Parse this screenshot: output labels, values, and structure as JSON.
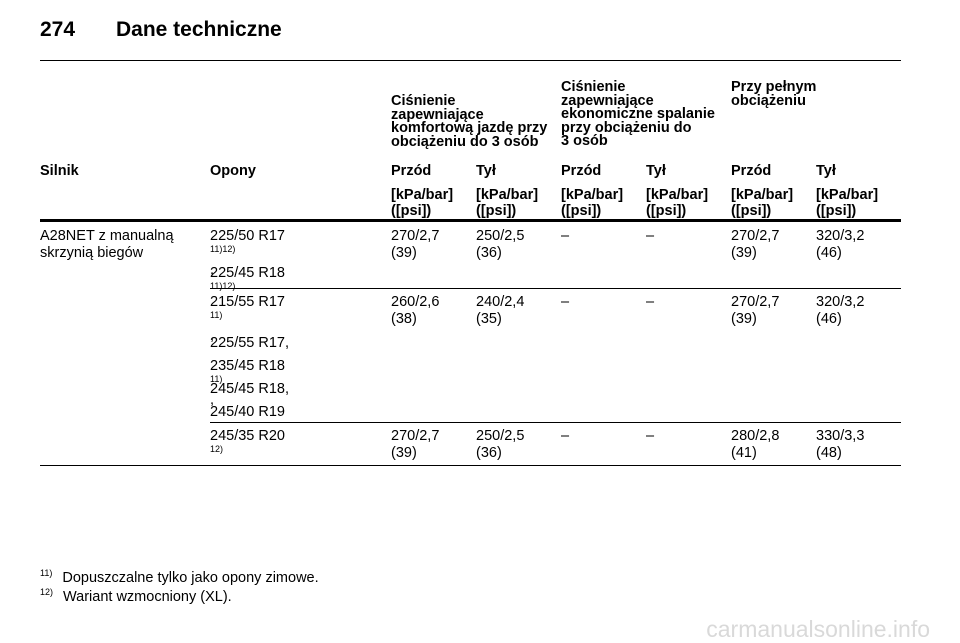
{
  "header": {
    "page_number": "274",
    "title": "Dane techniczne"
  },
  "group_headers": {
    "comfort": [
      "Ciśnienie",
      "zapewniające",
      "komfortową jazdę przy",
      "obciążeniu do 3 osób"
    ],
    "eco": [
      "Ciśnienie",
      "zapewniające",
      "ekonomiczne spalanie",
      "przy obciążeniu do",
      "3 osób"
    ],
    "full": [
      "Przy pełnym",
      "obciążeniu"
    ]
  },
  "columns": {
    "engine": "Silnik",
    "tyres": "Opony",
    "front1": "Przód",
    "rear1": "Tył",
    "front2": "Przód",
    "rear2": "Tył",
    "front3": "Przód",
    "rear3": "Tył"
  },
  "units": {
    "line1": "[kPa/bar]",
    "line2": "([psi])"
  },
  "rows": {
    "engine": [
      "A28NET z manualną",
      "skrzynią biegów"
    ],
    "r1": {
      "tyre_a": "225/50 R17",
      "tyre_a_sup": "11)12)",
      "tyre_a_comma": ",",
      "tyre_b": "225/45 R18",
      "tyre_b_sup": "11)12)",
      "v1": [
        "270/2,7",
        "(39)"
      ],
      "v2": [
        "250/2,5",
        "(36)"
      ],
      "v3": "–",
      "v4": "–",
      "v5": [
        "270/2,7",
        "(39)"
      ],
      "v6": [
        "320/3,2",
        "(46)"
      ]
    },
    "r2": {
      "tyre_a": "215/55 R17",
      "tyre_a_sup": "11)",
      "tyre_a_comma": ",",
      "tyre_b": "225/55 R17,",
      "tyre_c": "235/45 R18",
      "tyre_c_sup": "11)",
      "tyre_c_comma": ",",
      "tyre_d": "245/45 R18,",
      "tyre_e": "245/40 R19",
      "v1": [
        "260/2,6",
        "(38)"
      ],
      "v2": [
        "240/2,4",
        "(35)"
      ],
      "v3": "–",
      "v4": "–",
      "v5": [
        "270/2,7",
        "(39)"
      ],
      "v6": [
        "320/3,2",
        "(46)"
      ]
    },
    "r3": {
      "tyre_a": "245/35 R20",
      "tyre_a_sup": "12)",
      "v1": [
        "270/2,7",
        "(39)"
      ],
      "v2": [
        "250/2,5",
        "(36)"
      ],
      "v3": "–",
      "v4": "–",
      "v5": [
        "280/2,8",
        "(41)"
      ],
      "v6": [
        "330/3,3",
        "(48)"
      ]
    }
  },
  "footnotes": [
    {
      "mark": "11)",
      "text": "Dopuszczalne tylko jako opony zimowe."
    },
    {
      "mark": "12)",
      "text": "Wariant wzmocniony (XL)."
    }
  ],
  "watermark": "carmanualsonline.info"
}
